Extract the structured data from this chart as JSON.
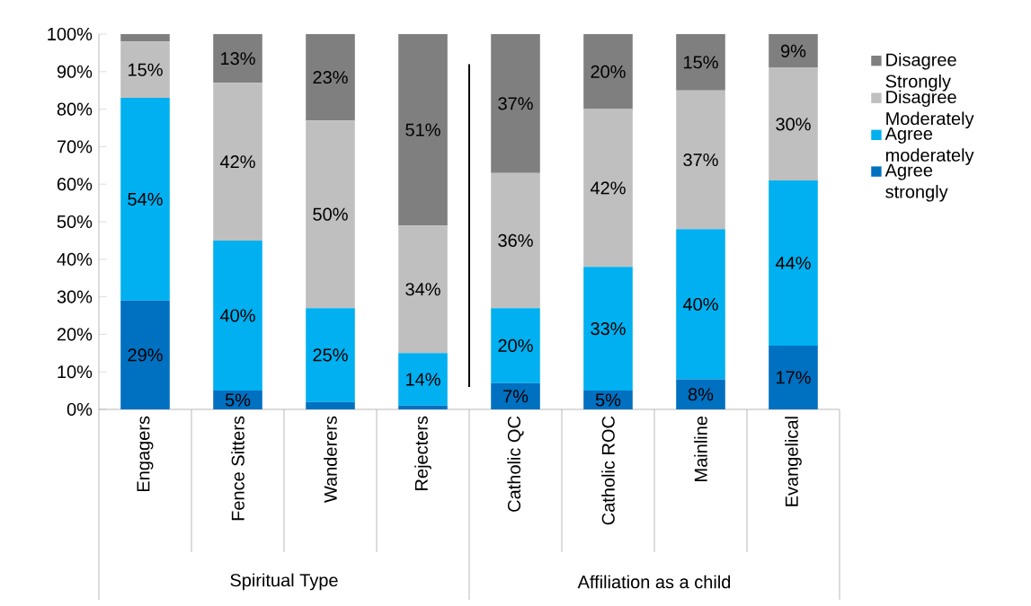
{
  "chart_data": {
    "type": "bar",
    "stacked": true,
    "categories": [
      "Engagers",
      "Fence Sitters",
      "Wanderers",
      "Rejecters",
      "Catholic QC",
      "Catholic ROC",
      "Mainline",
      "Evangelical"
    ],
    "series": [
      {
        "name": "Agree strongly",
        "color": "#0070c0",
        "values": [
          29,
          5,
          2,
          1,
          7,
          5,
          8,
          17
        ],
        "value_labels": [
          "29%",
          "5%",
          null,
          null,
          "7%",
          "5%",
          "8%",
          "17%"
        ]
      },
      {
        "name": "Agree moderately",
        "color": "#00b0f0",
        "values": [
          54,
          40,
          25,
          14,
          20,
          33,
          40,
          44
        ],
        "value_labels": [
          "54%",
          "40%",
          "25%",
          "14%",
          "20%",
          "33%",
          "40%",
          "44%"
        ]
      },
      {
        "name": "Disagree Moderately",
        "color": "#bfbfbf",
        "values": [
          15,
          42,
          50,
          34,
          36,
          42,
          37,
          30
        ],
        "value_labels": [
          "15%",
          "42%",
          "50%",
          "34%",
          "36%",
          "42%",
          "37%",
          "30%"
        ]
      },
      {
        "name": "Disagree Strongly",
        "color": "#7f7f7f",
        "values": [
          2,
          13,
          23,
          51,
          37,
          20,
          15,
          9
        ],
        "value_labels": [
          null,
          "13%",
          "23%",
          "51%",
          "37%",
          "20%",
          "15%",
          "9%"
        ]
      }
    ],
    "ylim": [
      0,
      100
    ],
    "yticks": [
      {
        "value": 0,
        "label": "0%"
      },
      {
        "value": 10,
        "label": "10%"
      },
      {
        "value": 20,
        "label": "20%"
      },
      {
        "value": 30,
        "label": "30%"
      },
      {
        "value": 40,
        "label": "40%"
      },
      {
        "value": 50,
        "label": "50%"
      },
      {
        "value": 60,
        "label": "60%"
      },
      {
        "value": 70,
        "label": "70%"
      },
      {
        "value": 80,
        "label": "80%"
      },
      {
        "value": 90,
        "label": "90%"
      },
      {
        "value": 100,
        "label": "100%"
      }
    ],
    "annotations": [
      "Spiritual Type",
      "Affiliation as a child"
    ],
    "legend": "right"
  }
}
